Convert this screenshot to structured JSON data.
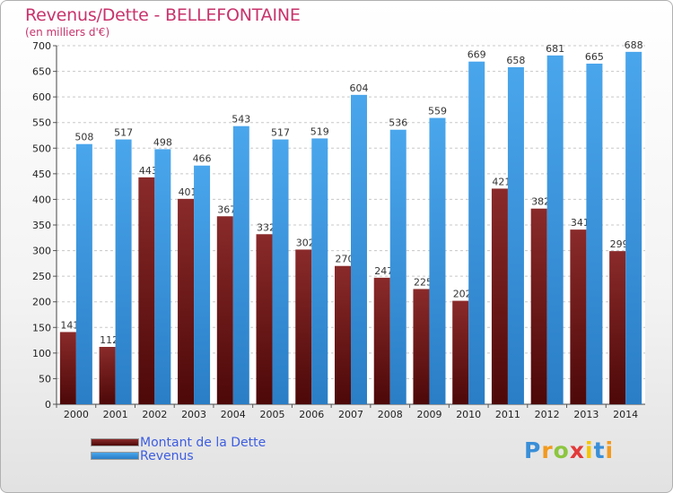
{
  "header": {
    "title": "Revenus/Dette - BELLEFONTAINE",
    "subtitle": "(en milliers d'€)"
  },
  "colors": {
    "dette": "#7a1b1b",
    "revenus": "#3a96de",
    "title": "#c8336b",
    "legend_text": "#3d5de0"
  },
  "chart_data": {
    "type": "bar",
    "title": "Revenus/Dette - BELLEFONTAINE",
    "ylabel": "(en milliers d'€)",
    "xlabel": "",
    "ylim": [
      0,
      700
    ],
    "ytick_step": 50,
    "grid": true,
    "legend_position": "bottom-left",
    "categories": [
      "2000",
      "2001",
      "2002",
      "2003",
      "2004",
      "2005",
      "2006",
      "2007",
      "2008",
      "2009",
      "2010",
      "2011",
      "2012",
      "2013",
      "2014"
    ],
    "series": [
      {
        "name": "Montant de la Dette",
        "values": [
          141,
          112,
          443,
          401,
          367,
          332,
          302,
          270,
          247,
          225,
          202,
          421,
          382,
          341,
          299
        ]
      },
      {
        "name": "Revenus",
        "values": [
          508,
          517,
          498,
          466,
          543,
          517,
          519,
          604,
          536,
          559,
          669,
          658,
          681,
          665,
          688
        ]
      }
    ]
  },
  "legend": {
    "items": [
      {
        "label": "Montant de la Dette"
      },
      {
        "label": "Revenus"
      }
    ]
  },
  "logo": {
    "letters": [
      "P",
      "r",
      "o",
      "x",
      "i",
      "t",
      "i"
    ]
  }
}
